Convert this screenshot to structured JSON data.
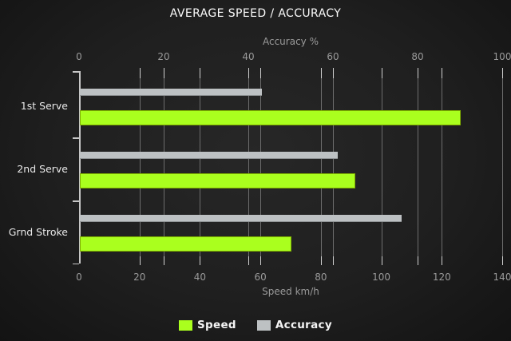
{
  "title": "AVERAGE SPEED / ACCURACY",
  "chart_data": {
    "type": "bar",
    "orientation": "horizontal",
    "title": "AVERAGE SPEED / ACCURACY",
    "categories": [
      "1st Serve",
      "2nd Serve",
      "Grnd Stroke"
    ],
    "series": [
      {
        "name": "Speed",
        "axis": "speed",
        "color": "#aaff1e",
        "values": [
          126,
          91,
          70
        ]
      },
      {
        "name": "Accuracy",
        "axis": "accuracy",
        "color": "#bdc1c3",
        "values": [
          43,
          61,
          76
        ]
      }
    ],
    "axes": {
      "accuracy": {
        "label": "Accuracy %",
        "position": "top",
        "min": 0,
        "max": 100,
        "ticks": [
          0,
          20,
          40,
          60,
          80,
          100
        ]
      },
      "speed": {
        "label": "Speed km/h",
        "position": "bottom",
        "min": 0,
        "max": 140,
        "ticks": [
          0,
          20,
          40,
          60,
          80,
          100,
          120,
          140
        ]
      }
    },
    "grid": true,
    "legend": {
      "position": "bottom",
      "entries": [
        {
          "label": "Speed",
          "color": "#aaff1e"
        },
        {
          "label": "Accuracy",
          "color": "#bdc1c3"
        }
      ]
    }
  },
  "colors": {
    "background_center": "#272727",
    "background_edge": "#131313",
    "title_text": "#fbfbfb",
    "axis_text": "#9a9a9a",
    "category_text": "#e8e8e8",
    "legend_text": "#f5f5f5",
    "gridline": "#6d6d6d",
    "axis_line": "#c6c6c6",
    "speed_bar": "#aaff1e",
    "accuracy_bar": "#bdc1c3"
  }
}
